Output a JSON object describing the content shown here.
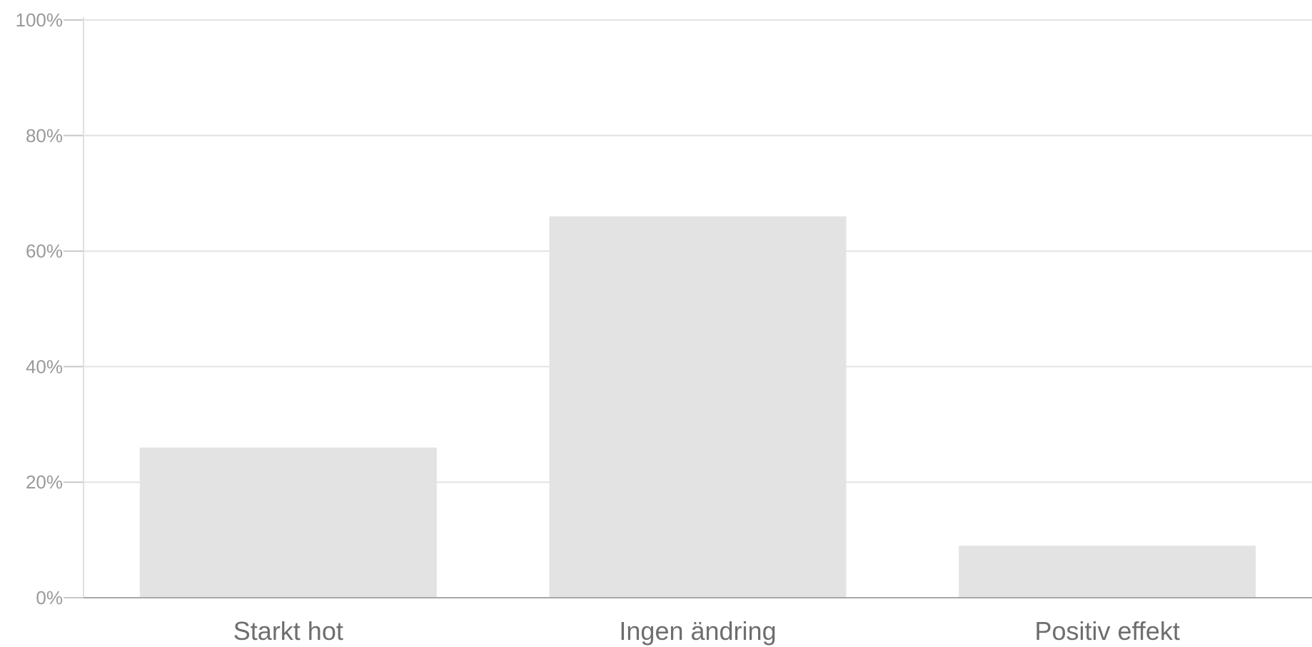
{
  "chart_data": {
    "type": "bar",
    "title": "",
    "xlabel": "",
    "ylabel": "",
    "categories": [
      "Starkt hot",
      "Ingen ändring",
      "Positiv effekt"
    ],
    "values": [
      26,
      66,
      9
    ],
    "ylim": [
      0,
      100
    ],
    "y_ticks": [
      0,
      20,
      40,
      60,
      80,
      100
    ],
    "y_tick_labels": [
      "0%",
      "20%",
      "40%",
      "60%",
      "80%",
      "100%"
    ],
    "grid": true,
    "legend": "none",
    "bar_color": "#e3e3e3"
  }
}
